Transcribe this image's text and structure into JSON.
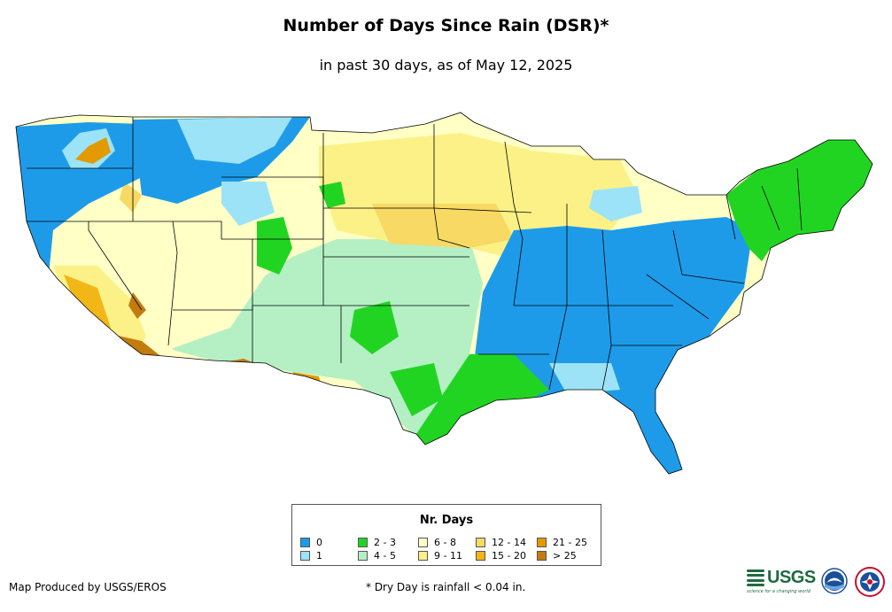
{
  "header": {
    "title": "Number of Days Since Rain (DSR)*",
    "subtitle": "in past 30 days, as of May 12, 2025"
  },
  "legend": {
    "title": "Nr. Days",
    "items": [
      {
        "label": "0",
        "color": "#1e9be8"
      },
      {
        "label": "1",
        "color": "#9ce3f7"
      },
      {
        "label": "2 - 3",
        "color": "#22d422"
      },
      {
        "label": "4 - 5",
        "color": "#b4f0c4"
      },
      {
        "label": "6 - 8",
        "color": "#ffffc6"
      },
      {
        "label": "9 - 11",
        "color": "#fcf187"
      },
      {
        "label": "12 - 14",
        "color": "#f7d963"
      },
      {
        "label": "15 - 20",
        "color": "#f2b616"
      },
      {
        "label": "21 - 25",
        "color": "#e39a00"
      },
      {
        "label": "> 25",
        "color": "#c37b0f"
      }
    ]
  },
  "footer": {
    "credit": "Map Produced by USGS/EROS",
    "footnote": "* Dry Day is rainfall < 0.04 in.",
    "usgs_label": "USGS",
    "usgs_tagline": "science for a changing world"
  },
  "logos": {
    "usgs": "usgs-logo",
    "noaa": "noaa-logo",
    "nws": "nws-logo"
  }
}
